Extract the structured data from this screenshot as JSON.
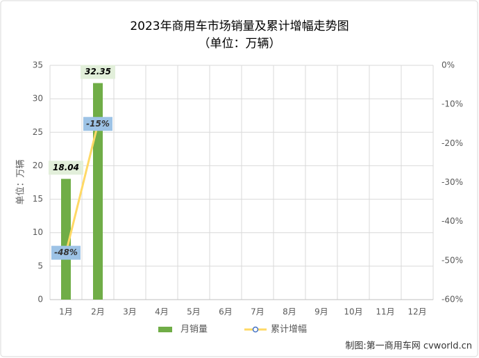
{
  "chart_data": {
    "type": "bar",
    "title": "2023年商用车市场销量及累计增幅走势图",
    "subtitle": "（单位：万辆）",
    "y_label": "单位：万辆",
    "source": "制图:第一商用车网 cvworld.cn",
    "categories": [
      "1月",
      "2月",
      "3月",
      "4月",
      "5月",
      "6月",
      "7月",
      "8月",
      "9月",
      "10月",
      "11月",
      "12月"
    ],
    "series": [
      {
        "name": "月销量",
        "type": "bar",
        "color": "#70ad47",
        "values": [
          18.04,
          32.35,
          null,
          null,
          null,
          null,
          null,
          null,
          null,
          null,
          null,
          null
        ]
      },
      {
        "name": "累计增幅",
        "type": "line",
        "axis": "y2",
        "color": "#ffd966",
        "values": [
          -48,
          -15,
          null,
          null,
          null,
          null,
          null,
          null,
          null,
          null,
          null,
          null
        ],
        "value_labels": [
          "-48%",
          "-15%",
          null,
          null,
          null,
          null,
          null,
          null,
          null,
          null,
          null,
          null
        ]
      }
    ],
    "ylim": [
      0,
      35
    ],
    "yticks": [
      0,
      5,
      10,
      15,
      20,
      25,
      30,
      35
    ],
    "y2lim": [
      -60,
      0
    ],
    "y2ticks": [
      {
        "value": 0,
        "label": "0%"
      },
      {
        "value": -10,
        "label": "-10%"
      },
      {
        "value": -20,
        "label": "-20%"
      },
      {
        "value": -30,
        "label": "-30%"
      },
      {
        "value": -40,
        "label": "-40%"
      },
      {
        "value": -50,
        "label": "-50%"
      },
      {
        "value": -60,
        "label": "-60%"
      }
    ],
    "grid": true,
    "legend": "bottom"
  }
}
